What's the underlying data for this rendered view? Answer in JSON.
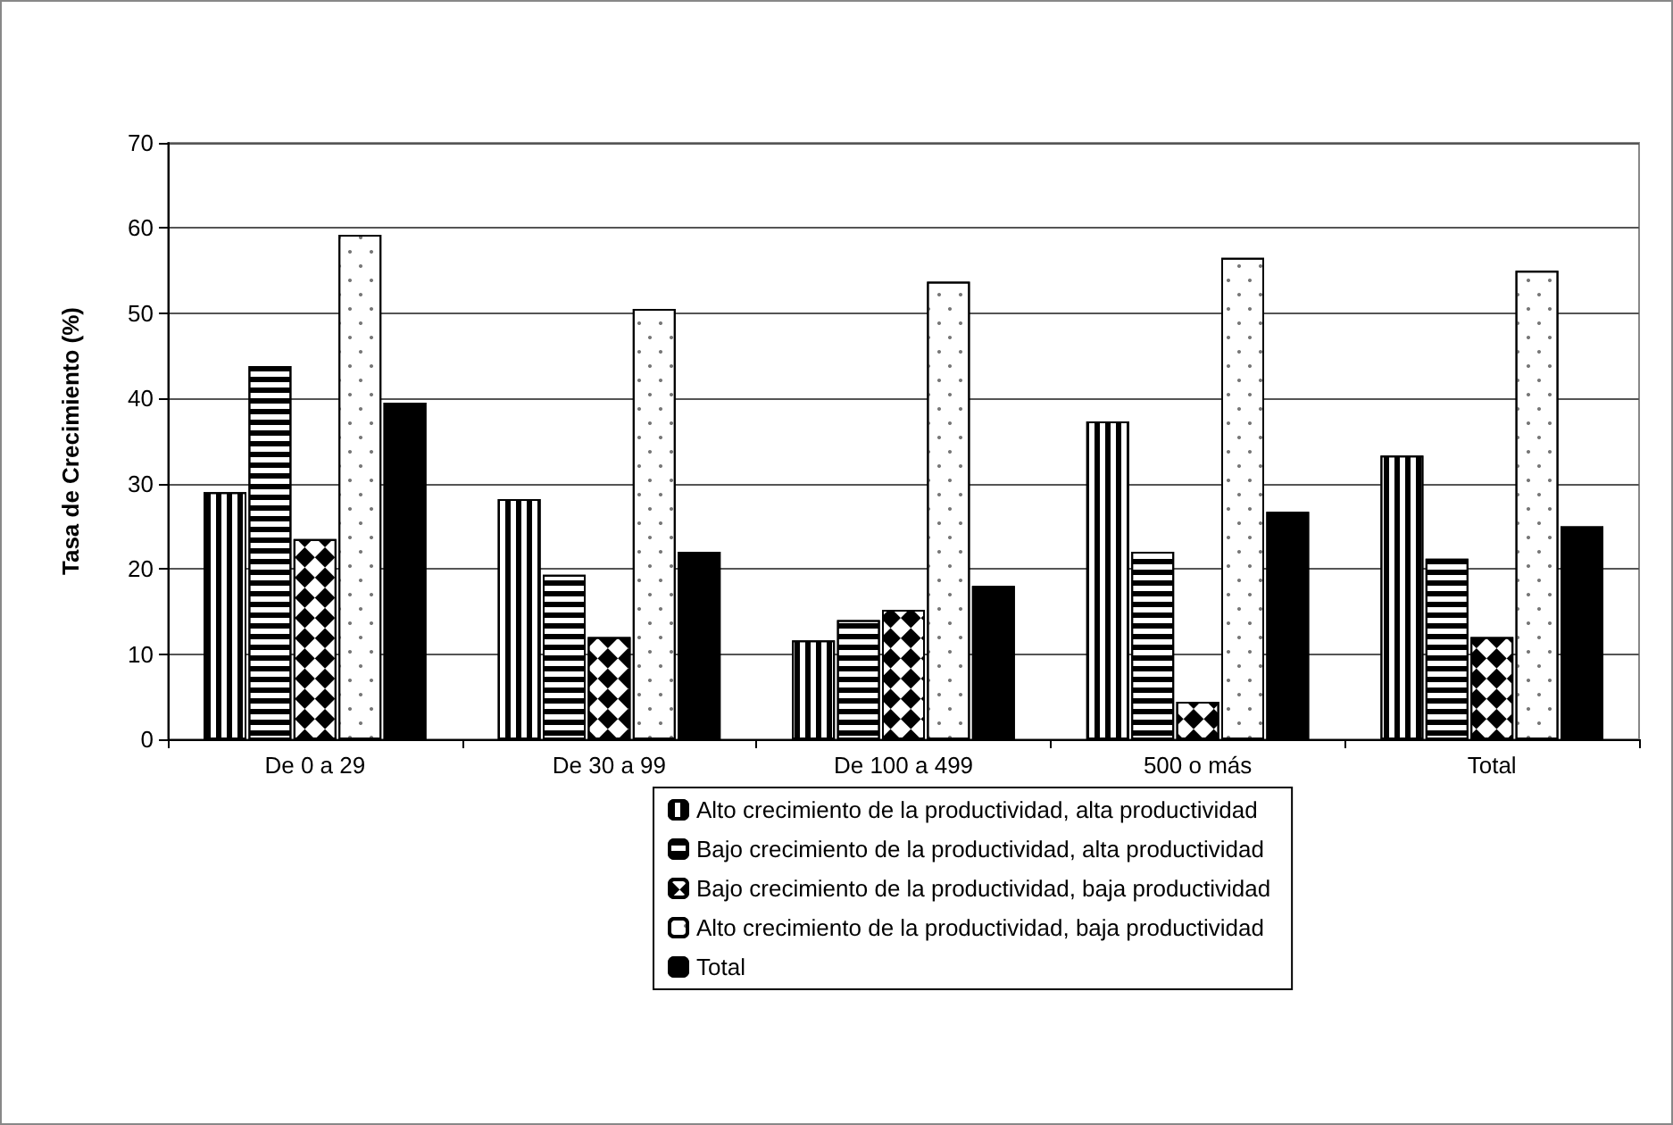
{
  "chart_data": {
    "type": "bar",
    "ylabel": "Tasa de Crecimiento (%)",
    "categories": [
      "De 0 a 29",
      "De 30 a 99",
      "De 100 a 499",
      "500 o más",
      "Total"
    ],
    "series": [
      {
        "name": "Alto crecimiento de la productividad, alta productividad",
        "color": "#ffffff",
        "values": [
          29,
          28.2,
          11.6,
          37.3,
          33.3
        ]
      },
      {
        "name": "Bajo crecimiento de la productividad, alta productividad",
        "color": "#ffffff",
        "values": [
          43.8,
          19.3,
          14,
          22,
          21.2
        ]
      },
      {
        "name": "Bajo crecimiento de la productividad, baja productividad",
        "color": "#ffffff",
        "values": [
          23.5,
          12,
          15.2,
          4.4,
          12
        ]
      },
      {
        "name": "Alto crecimiento de la productividad, baja productividad",
        "color": "#ffffff",
        "values": [
          59.2,
          50.5,
          53.7,
          56.5,
          55
        ]
      },
      {
        "name": "Total",
        "color": "#000000",
        "values": [
          39.5,
          22,
          18,
          26.7,
          25
        ]
      }
    ],
    "ylim": [
      0,
      70
    ],
    "yticks": [
      0,
      10,
      20,
      30,
      40,
      50,
      60,
      70
    ],
    "grid": "y",
    "legend": "bottom"
  }
}
